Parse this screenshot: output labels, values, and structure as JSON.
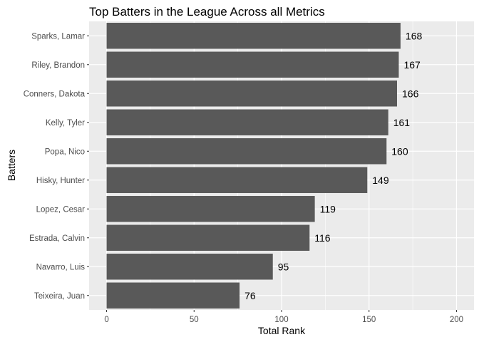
{
  "chart_data": {
    "type": "bar",
    "orientation": "horizontal",
    "title": "Top Batters in the League Across all Metrics",
    "xlabel": "Total Rank",
    "ylabel": "Batters",
    "categories": [
      "Teixeira, Juan",
      "Navarro, Luis",
      "Estrada, Calvin",
      "Lopez, Cesar",
      "Hisky, Hunter",
      "Popa, Nico",
      "Kelly, Tyler",
      "Conners, Dakota",
      "Riley, Brandon",
      "Sparks, Lamar"
    ],
    "values": [
      76,
      95,
      116,
      119,
      149,
      160,
      161,
      166,
      167,
      168
    ],
    "xlim": [
      0,
      200
    ],
    "xticks": [
      0,
      50,
      100,
      150,
      200
    ],
    "grid": true,
    "data_labels": true,
    "colors": {
      "bar": "#595959",
      "panel_background": "#ebebeb",
      "grid": "#ffffff"
    }
  }
}
